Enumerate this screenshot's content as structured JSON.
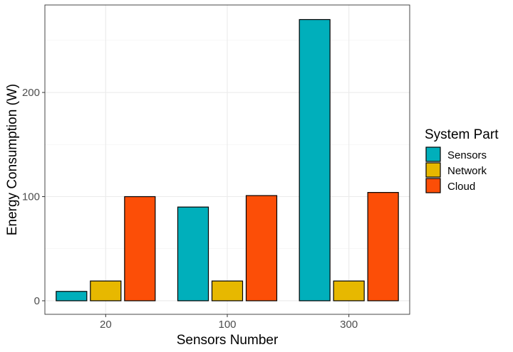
{
  "chart_data": {
    "type": "bar",
    "categories": [
      "20",
      "100",
      "300"
    ],
    "series": [
      {
        "name": "Sensors",
        "values": [
          9,
          90,
          270
        ],
        "color": "#00AFBB"
      },
      {
        "name": "Network",
        "values": [
          19,
          19,
          19
        ],
        "color": "#E7B800"
      },
      {
        "name": "Cloud",
        "values": [
          100,
          101,
          104
        ],
        "color": "#FC4E07"
      }
    ],
    "xlabel": "Sensors Number",
    "ylabel": "Energy Consumption (W)",
    "yticks": [
      0,
      100,
      200
    ],
    "ylim": [
      -13,
      284
    ],
    "grid": true,
    "legend": {
      "title": "System Part",
      "position": "right"
    }
  }
}
